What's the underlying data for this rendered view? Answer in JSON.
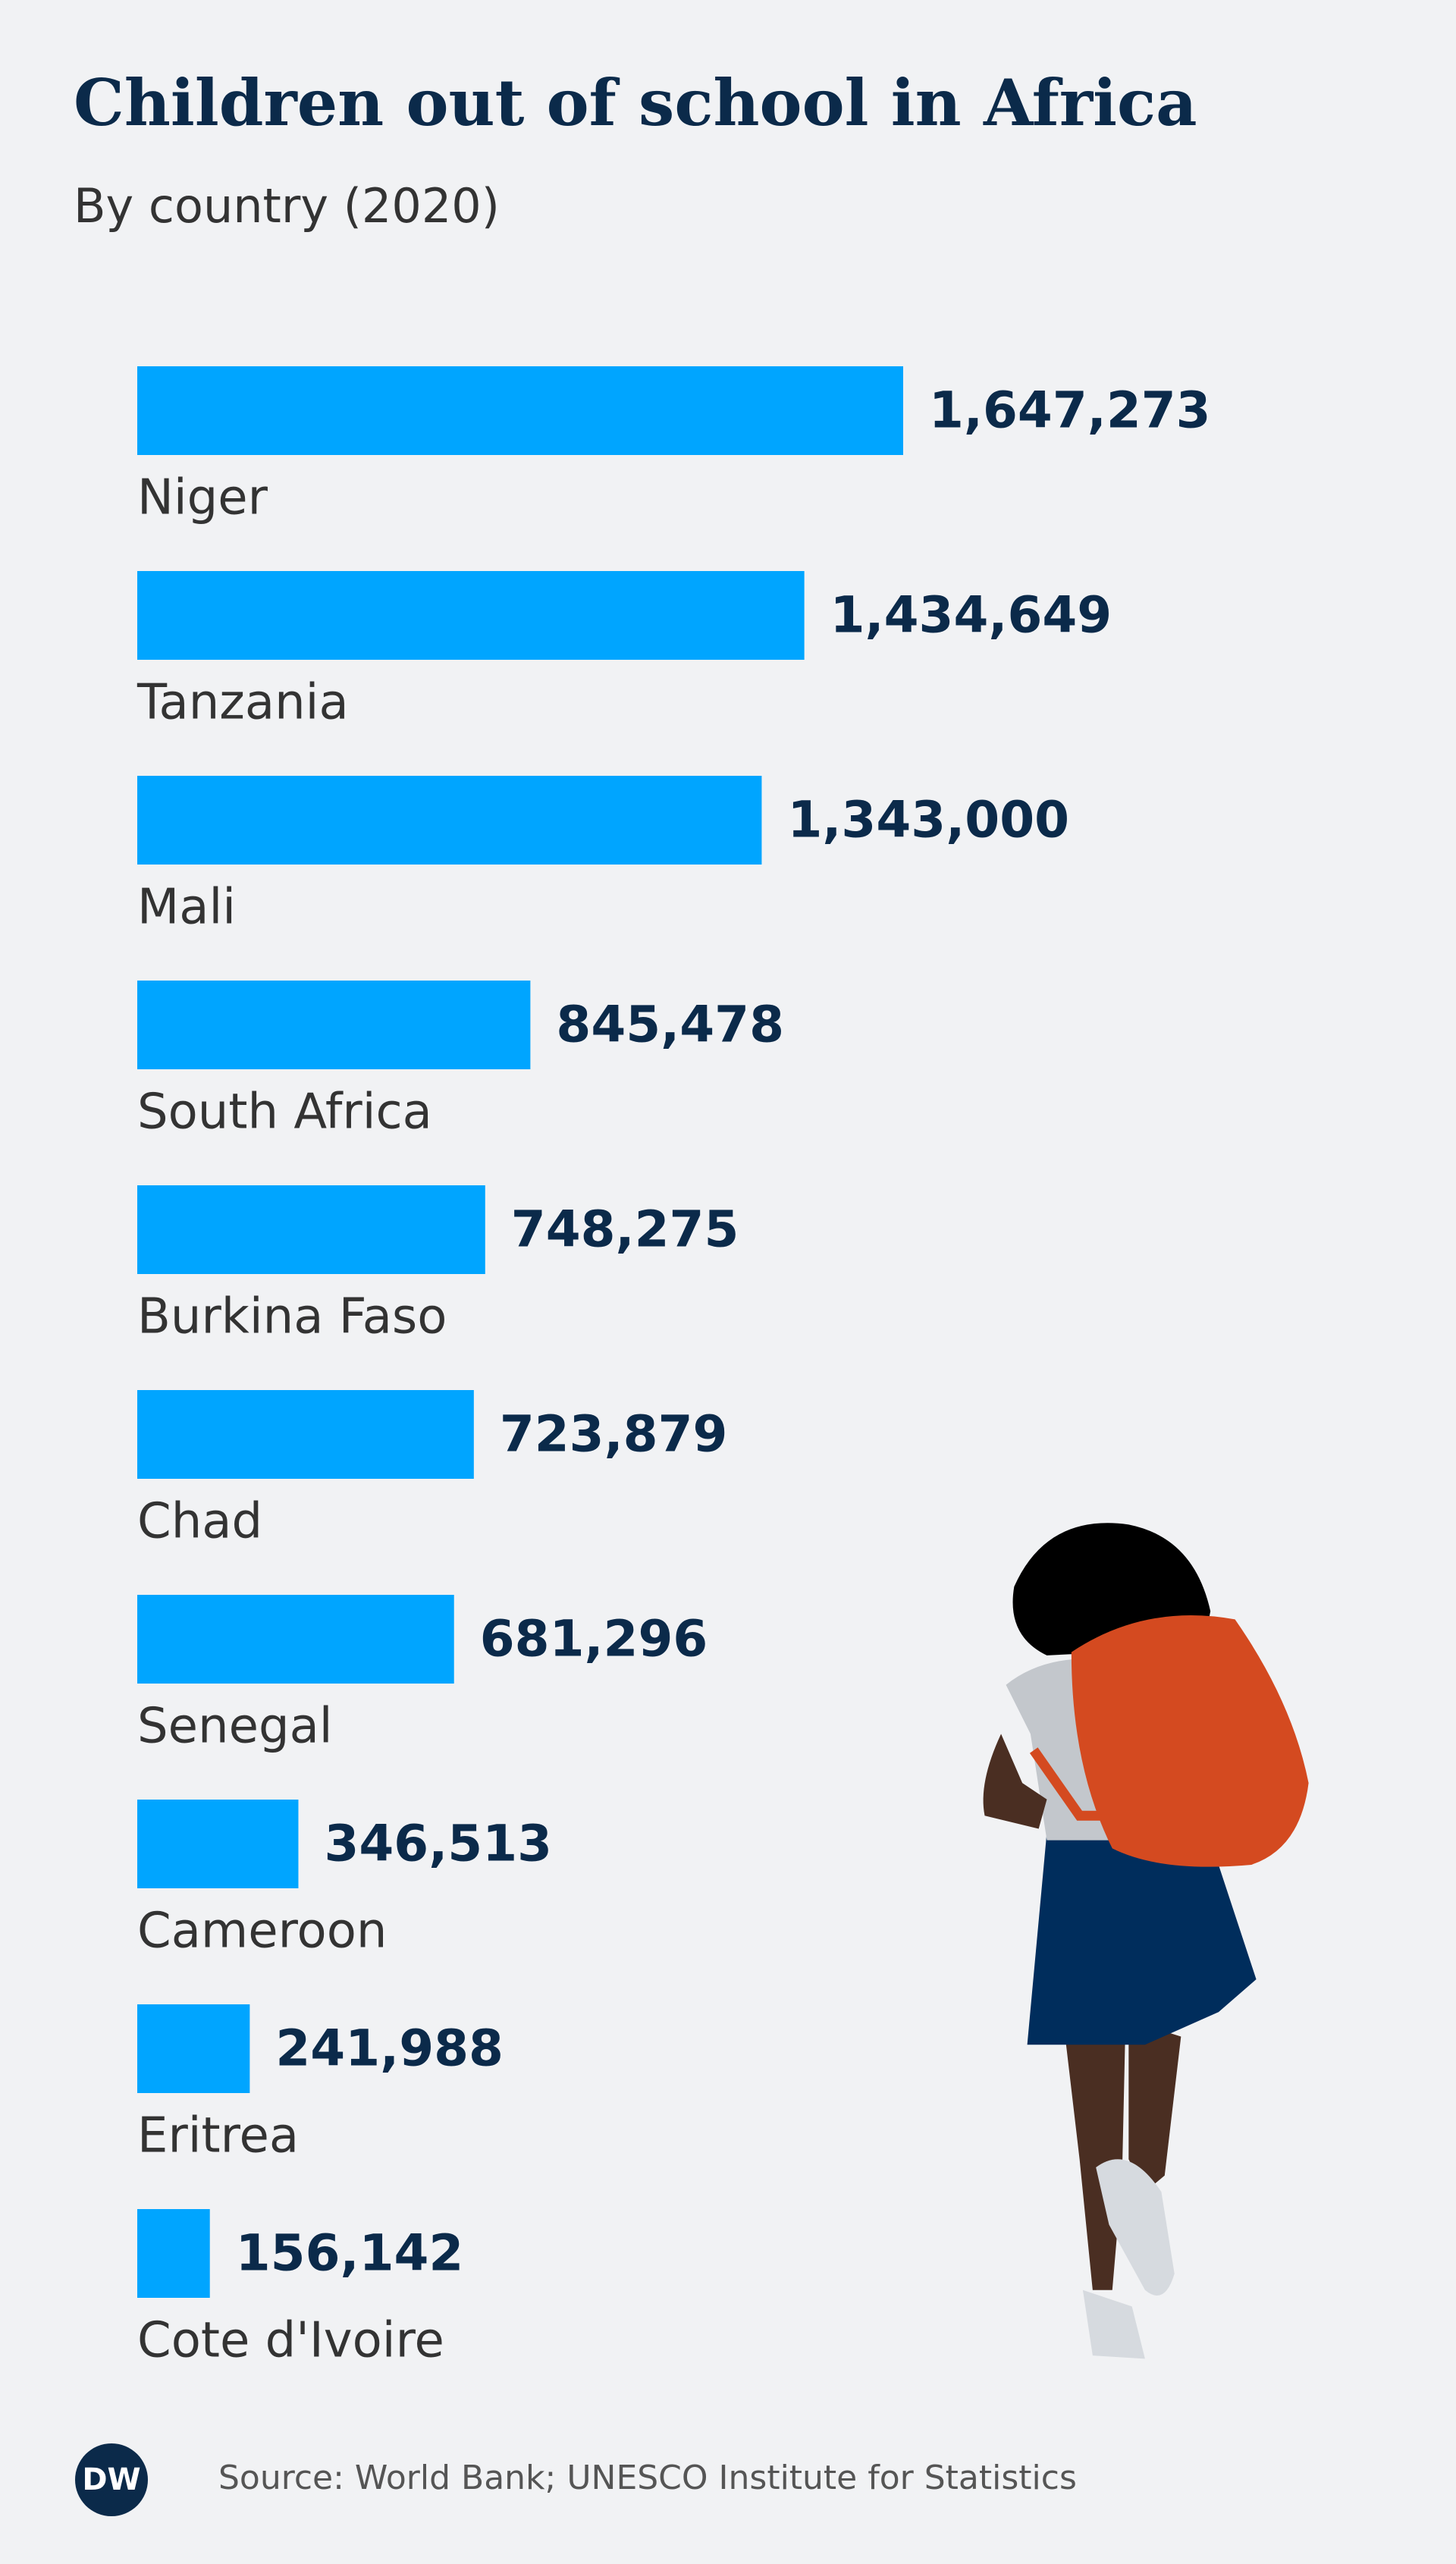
{
  "chart_data": {
    "type": "bar",
    "orientation": "horizontal",
    "title": "Children out of school in Africa",
    "subtitle": "By country (2020)",
    "categories": [
      "Niger",
      "Tanzania",
      "Mali",
      "South Africa",
      "Burkina Faso",
      "Chad",
      "Senegal",
      "Cameroon",
      "Eritrea",
      "Cote d'Ivoire"
    ],
    "values": [
      1647273,
      1434649,
      1343000,
      845478,
      748275,
      723879,
      681296,
      346513,
      241988,
      156142
    ],
    "value_labels": [
      "1,647,273",
      "1,434,649",
      "1,343,000",
      "845,478",
      "748,275",
      "723,879",
      "681,296",
      "346,513",
      "241,988",
      "156,142"
    ],
    "color": "#00a5ff",
    "source": "Source: World Bank; UNESCO Institute for Statistics",
    "logo": "DW"
  }
}
